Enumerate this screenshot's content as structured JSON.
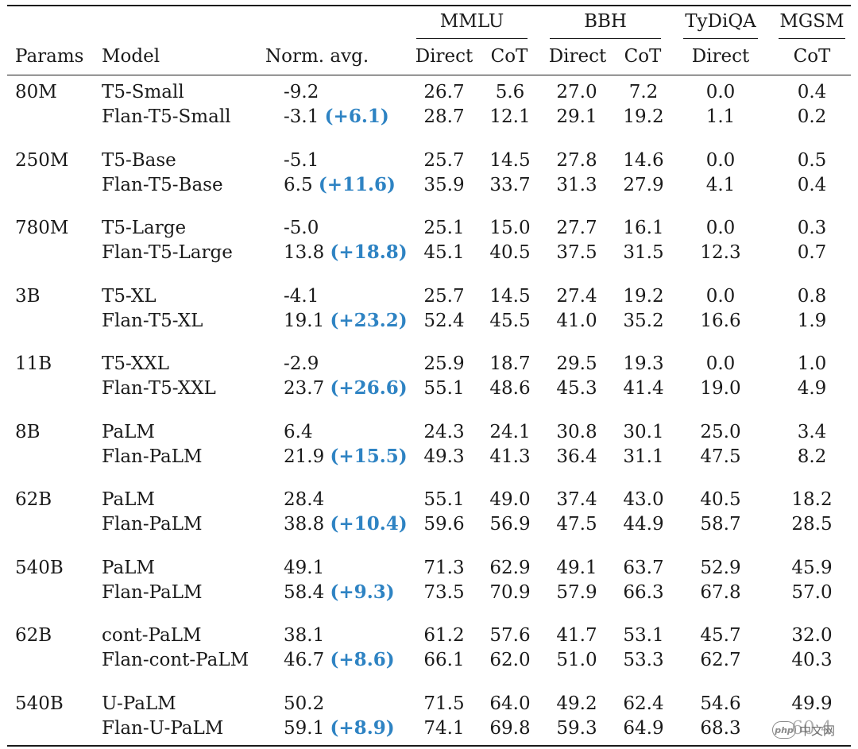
{
  "header": {
    "groups": [
      "MMLU",
      "BBH",
      "TyDiQA",
      "MGSM"
    ],
    "params": "Params",
    "model": "Model",
    "norm_avg": "Norm. avg.",
    "subcols": [
      "Direct",
      "CoT",
      "Direct",
      "CoT",
      "Direct",
      "CoT"
    ]
  },
  "blocks": [
    {
      "params": "80M",
      "rows": [
        {
          "model": "T5-Small",
          "avg": "-9.2",
          "gain": "",
          "vals": [
            "26.7",
            "5.6",
            "27.0",
            "7.2",
            "0.0",
            "0.4"
          ]
        },
        {
          "model": "Flan-T5-Small",
          "avg": "-3.1",
          "gain": "(+6.1)",
          "vals": [
            "28.7",
            "12.1",
            "29.1",
            "19.2",
            "1.1",
            "0.2"
          ]
        }
      ]
    },
    {
      "params": "250M",
      "rows": [
        {
          "model": "T5-Base",
          "avg": "-5.1",
          "gain": "",
          "vals": [
            "25.7",
            "14.5",
            "27.8",
            "14.6",
            "0.0",
            "0.5"
          ]
        },
        {
          "model": "Flan-T5-Base",
          "avg": "6.5",
          "gain": "(+11.6)",
          "vals": [
            "35.9",
            "33.7",
            "31.3",
            "27.9",
            "4.1",
            "0.4"
          ]
        }
      ]
    },
    {
      "params": "780M",
      "rows": [
        {
          "model": "T5-Large",
          "avg": "-5.0",
          "gain": "",
          "vals": [
            "25.1",
            "15.0",
            "27.7",
            "16.1",
            "0.0",
            "0.3"
          ]
        },
        {
          "model": "Flan-T5-Large",
          "avg": "13.8",
          "gain": "(+18.8)",
          "vals": [
            "45.1",
            "40.5",
            "37.5",
            "31.5",
            "12.3",
            "0.7"
          ]
        }
      ]
    },
    {
      "params": "3B",
      "rows": [
        {
          "model": "T5-XL",
          "avg": "-4.1",
          "gain": "",
          "vals": [
            "25.7",
            "14.5",
            "27.4",
            "19.2",
            "0.0",
            "0.8"
          ]
        },
        {
          "model": "Flan-T5-XL",
          "avg": "19.1",
          "gain": "(+23.2)",
          "vals": [
            "52.4",
            "45.5",
            "41.0",
            "35.2",
            "16.6",
            "1.9"
          ]
        }
      ]
    },
    {
      "params": "11B",
      "rows": [
        {
          "model": "T5-XXL",
          "avg": "-2.9",
          "gain": "",
          "vals": [
            "25.9",
            "18.7",
            "29.5",
            "19.3",
            "0.0",
            "1.0"
          ]
        },
        {
          "model": "Flan-T5-XXL",
          "avg": "23.7",
          "gain": "(+26.6)",
          "vals": [
            "55.1",
            "48.6",
            "45.3",
            "41.4",
            "19.0",
            "4.9"
          ]
        }
      ]
    },
    {
      "params": "8B",
      "rows": [
        {
          "model": "PaLM",
          "avg": "6.4",
          "gain": "",
          "vals": [
            "24.3",
            "24.1",
            "30.8",
            "30.1",
            "25.0",
            "3.4"
          ]
        },
        {
          "model": "Flan-PaLM",
          "avg": "21.9",
          "gain": "(+15.5)",
          "vals": [
            "49.3",
            "41.3",
            "36.4",
            "31.1",
            "47.5",
            "8.2"
          ]
        }
      ]
    },
    {
      "params": "62B",
      "rows": [
        {
          "model": "PaLM",
          "avg": "28.4",
          "gain": "",
          "vals": [
            "55.1",
            "49.0",
            "37.4",
            "43.0",
            "40.5",
            "18.2"
          ]
        },
        {
          "model": "Flan-PaLM",
          "avg": "38.8",
          "gain": "(+10.4)",
          "vals": [
            "59.6",
            "56.9",
            "47.5",
            "44.9",
            "58.7",
            "28.5"
          ]
        }
      ]
    },
    {
      "params": "540B",
      "rows": [
        {
          "model": "PaLM",
          "avg": "49.1",
          "gain": "",
          "vals": [
            "71.3",
            "62.9",
            "49.1",
            "63.7",
            "52.9",
            "45.9"
          ]
        },
        {
          "model": "Flan-PaLM",
          "avg": "58.4",
          "gain": "(+9.3)",
          "vals": [
            "73.5",
            "70.9",
            "57.9",
            "66.3",
            "67.8",
            "57.0"
          ]
        }
      ]
    },
    {
      "params": "62B",
      "rows": [
        {
          "model": "cont-PaLM",
          "avg": "38.1",
          "gain": "",
          "vals": [
            "61.2",
            "57.6",
            "41.7",
            "53.1",
            "45.7",
            "32.0"
          ]
        },
        {
          "model": "Flan-cont-PaLM",
          "avg": "46.7",
          "gain": "(+8.6)",
          "vals": [
            "66.1",
            "62.0",
            "51.0",
            "53.3",
            "62.7",
            "40.3"
          ]
        }
      ]
    },
    {
      "params": "540B",
      "rows": [
        {
          "model": "U-PaLM",
          "avg": "50.2",
          "gain": "",
          "vals": [
            "71.5",
            "64.0",
            "49.2",
            "62.4",
            "54.6",
            "49.9"
          ]
        },
        {
          "model": "Flan-U-PaLM",
          "avg": "59.1",
          "gain": "(+8.9)",
          "vals": [
            "74.1",
            "69.8",
            "59.3",
            "64.9",
            "68.3",
            "60.4"
          ]
        }
      ]
    }
  ],
  "watermark": {
    "logo": "php",
    "text": "中文网"
  }
}
